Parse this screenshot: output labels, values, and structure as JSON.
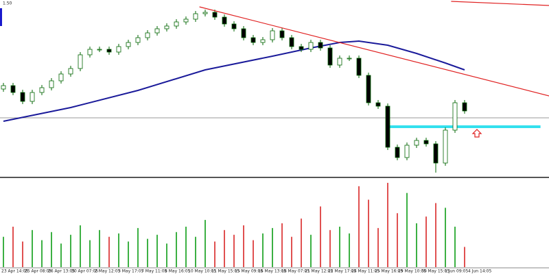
{
  "chart_data": {
    "type": "candlestick",
    "corner_label": "1.50",
    "ylim": [
      0,
      258
    ],
    "candle_colors": {
      "up": "#ffffff",
      "down": "#000000",
      "outline": "#006400"
    },
    "candles": [
      [
        128,
        137,
        124,
        133
      ],
      [
        133,
        137,
        119,
        123
      ],
      [
        123,
        127,
        106,
        110
      ],
      [
        110,
        127,
        106,
        123
      ],
      [
        123,
        134,
        119,
        130
      ],
      [
        130,
        144,
        126,
        140
      ],
      [
        140,
        154,
        136,
        150
      ],
      [
        150,
        162,
        146,
        158
      ],
      [
        158,
        182,
        154,
        178
      ],
      [
        178,
        190,
        174,
        186
      ],
      [
        186,
        190,
        182,
        186
      ],
      [
        186,
        190,
        178,
        182
      ],
      [
        182,
        194,
        178,
        190
      ],
      [
        190,
        200,
        186,
        196
      ],
      [
        196,
        207,
        192,
        203
      ],
      [
        203,
        214,
        199,
        210
      ],
      [
        210,
        220,
        206,
        216
      ],
      [
        216,
        224,
        212,
        220
      ],
      [
        220,
        230,
        216,
        226
      ],
      [
        226,
        234,
        222,
        230
      ],
      [
        230,
        242,
        226,
        238
      ],
      [
        238,
        244,
        234,
        240
      ],
      [
        240,
        244,
        229,
        233
      ],
      [
        233,
        237,
        219,
        223
      ],
      [
        223,
        227,
        212,
        216
      ],
      [
        216,
        220,
        199,
        203
      ],
      [
        203,
        207,
        192,
        196
      ],
      [
        196,
        204,
        192,
        200
      ],
      [
        200,
        217,
        196,
        213
      ],
      [
        213,
        217,
        199,
        203
      ],
      [
        203,
        207,
        186,
        190
      ],
      [
        190,
        194,
        182,
        186
      ],
      [
        186,
        200,
        182,
        196
      ],
      [
        196,
        200,
        184,
        188
      ],
      [
        188,
        192,
        159,
        163
      ],
      [
        163,
        177,
        159,
        173
      ],
      [
        173,
        177,
        169,
        173
      ],
      [
        173,
        177,
        144,
        148
      ],
      [
        148,
        152,
        104,
        108
      ],
      [
        108,
        112,
        99,
        103
      ],
      [
        103,
        107,
        39,
        43
      ],
      [
        43,
        47,
        24,
        28
      ],
      [
        28,
        50,
        24,
        46
      ],
      [
        46,
        57,
        42,
        53
      ],
      [
        53,
        57,
        44,
        48
      ],
      [
        48,
        52,
        6,
        20
      ],
      [
        20,
        72,
        16,
        68
      ],
      [
        68,
        112,
        64,
        108
      ],
      [
        108,
        112,
        92,
        96
      ]
    ],
    "moving_average": {
      "color": "#1a1a9a",
      "x": [
        0,
        7,
        14,
        21,
        28,
        32,
        35,
        37,
        40,
        43,
        46,
        48
      ],
      "values": [
        81,
        101,
        126,
        156,
        176,
        188,
        196,
        198,
        192,
        180,
        166,
        156
      ]
    },
    "trendlines": [
      {
        "color": "#e02020",
        "x": [
          20.4,
          56.8
        ],
        "values": [
          248,
          118
        ]
      },
      {
        "color": "#e02020",
        "x": [
          46.6,
          56.8
        ],
        "values": [
          256,
          250
        ]
      }
    ],
    "level_lines": [
      {
        "color": "#999999",
        "x": [
          -0.4,
          56.8
        ],
        "values": [
          86,
          86
        ]
      },
      {
        "color": "#33e0ee",
        "x": [
          40,
          55.9
        ],
        "values": [
          73,
          73
        ]
      }
    ],
    "volume": {
      "ylim": [
        0,
        130
      ],
      "up_color": "#3cb043",
      "down_color": "#e05050",
      "values": [
        45,
        60,
        38,
        55,
        40,
        52,
        35,
        48,
        62,
        40,
        55,
        45,
        50,
        38,
        58,
        42,
        48,
        35,
        52,
        60,
        45,
        70,
        38,
        55,
        48,
        62,
        40,
        50,
        58,
        65,
        45,
        72,
        48,
        90,
        55,
        60,
        50,
        120,
        100,
        58,
        125,
        80,
        110,
        65,
        75,
        95,
        88,
        60,
        30
      ]
    },
    "xlabels": [
      "23 Apr 14:05",
      "25 Apr 08:05",
      "26 Apr 13:05",
      "30 Apr 07:05",
      "2 May 12:05",
      "3 May 17:05",
      "7 May 11:05",
      "8 May 16:05",
      "10 May 10:05",
      "11 May 15:05",
      "15 May 09:05",
      "16 May 13:05",
      "18 May 07:05",
      "21 May 12:05",
      "22 May 17:05",
      "24 May 11:05",
      "25 May 16:05",
      "29 May 10:05",
      "30 May 15:05",
      "1 Jun 09:05",
      "4 Jun 14:05"
    ]
  }
}
